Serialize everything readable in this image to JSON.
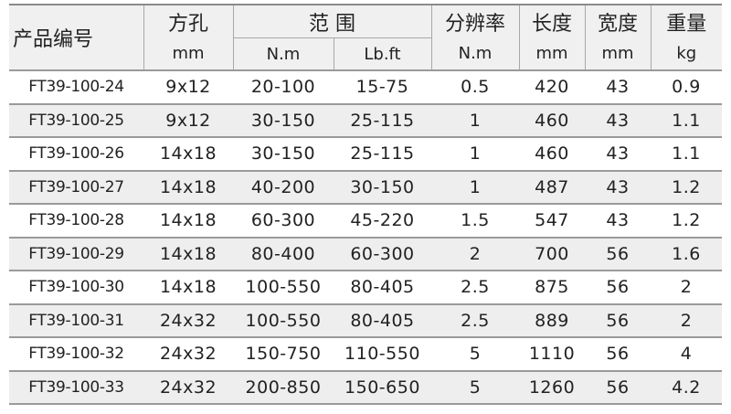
{
  "headers": {
    "code": "产品编号",
    "square_hole": "方孔",
    "square_hole_unit": "mm",
    "range": "范 围",
    "range_unit_nm": "N.m",
    "range_unit_lbft": "Lb.ft",
    "resolution": "分辨率",
    "resolution_unit": "N.m",
    "length": "长度",
    "length_unit": "mm",
    "width": "宽度",
    "width_unit": "mm",
    "weight": "重量",
    "weight_unit": "kg"
  },
  "rows": [
    [
      "FT39-100-24",
      "9x12",
      "20-100",
      "15-75",
      "0.5",
      "420",
      "43",
      "0.9"
    ],
    [
      "FT39-100-25",
      "9x12",
      "30-150",
      "25-115",
      "1",
      "460",
      "43",
      "1.1"
    ],
    [
      "FT39-100-26",
      "14x18",
      "30-150",
      "25-115",
      "1",
      "460",
      "43",
      "1.1"
    ],
    [
      "FT39-100-27",
      "14x18",
      "40-200",
      "30-150",
      "1",
      "487",
      "43",
      "1.2"
    ],
    [
      "FT39-100-28",
      "14x18",
      "60-300",
      "45-220",
      "1.5",
      "547",
      "43",
      "1.2"
    ],
    [
      "FT39-100-29",
      "14x18",
      "80-400",
      "60-300",
      "2",
      "700",
      "56",
      "1.6"
    ],
    [
      "FT39-100-30",
      "14x18",
      "100-550",
      "80-405",
      "2.5",
      "875",
      "56",
      "2"
    ],
    [
      "FT39-100-31",
      "24x32",
      "100-550",
      "80-405",
      "2.5",
      "889",
      "56",
      "2"
    ],
    [
      "FT39-100-32",
      "24x32",
      "150-750",
      "110-550",
      "5",
      "1110",
      "56",
      "4"
    ],
    [
      "FT39-100-33",
      "24x32",
      "200-850",
      "150-650",
      "5",
      "1260",
      "56",
      "4.2"
    ]
  ]
}
